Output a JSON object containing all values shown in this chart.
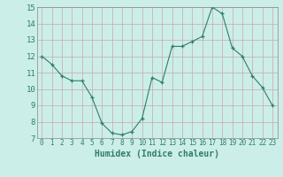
{
  "x": [
    0,
    1,
    2,
    3,
    4,
    5,
    6,
    7,
    8,
    9,
    10,
    11,
    12,
    13,
    14,
    15,
    16,
    17,
    18,
    19,
    20,
    21,
    22,
    23
  ],
  "y": [
    12.0,
    11.5,
    10.8,
    10.5,
    10.5,
    9.5,
    7.9,
    7.3,
    7.2,
    7.4,
    8.2,
    10.7,
    10.4,
    12.6,
    12.6,
    12.9,
    13.2,
    15.0,
    14.6,
    12.5,
    12.0,
    10.8,
    10.1,
    9.0
  ],
  "xlabel": "Humidex (Indice chaleur)",
  "ylim": [
    7,
    15
  ],
  "xlim": [
    -0.5,
    23.5
  ],
  "line_color": "#2e7d6e",
  "bg_color": "#cceee8",
  "grid_color_v": "#c8a8a8",
  "grid_color_h": "#c8a8a8",
  "tick_color": "#2e7d6e",
  "xlabel_fontsize": 7,
  "tick_fontsize": 5.5,
  "ytick_fontsize": 6.5
}
